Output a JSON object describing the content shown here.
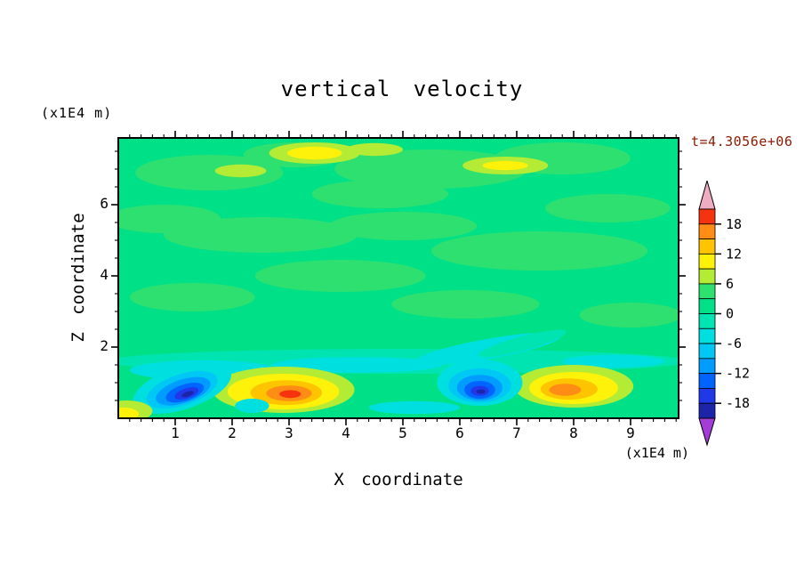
{
  "title": "vertical velocity",
  "time_label": "t=4.3056e+06",
  "colors": {
    "time_label": "#8b1a00",
    "frame": "#000000",
    "background": "#ffffff"
  },
  "axes": {
    "x": {
      "label": "X coordinate",
      "unit": "(x1E4 m)",
      "ticks": [
        "1",
        "2",
        "3",
        "4",
        "5",
        "6",
        "7",
        "8",
        "9"
      ],
      "min": 0,
      "max": 9.84
    },
    "y": {
      "label": "Z coordinate",
      "unit": "(x1E4 m)",
      "ticks": [
        "2",
        "4",
        "6"
      ],
      "min": 0,
      "max": 7.875
    }
  },
  "colorbar": {
    "tick_labels": [
      "18",
      "12",
      "6",
      "0",
      "-6",
      "-12",
      "-18"
    ],
    "segments": [
      "red",
      "orange",
      "amber",
      "yellow",
      "yellowgreen",
      "green",
      "springgreen",
      "aqua",
      "cyan",
      "lightblue",
      "dodger",
      "blue",
      "deepblue",
      "navy"
    ],
    "arrow_top": "pink",
    "arrow_bottom": "purple"
  },
  "chart_data": {
    "type": "heatmap",
    "title": "vertical velocity",
    "xlabel": "X coordinate (x1E4 m)",
    "ylabel": "Z coordinate (x1E4 m)",
    "time": "t=4.3056e+06",
    "xlim": [
      0,
      9.84
    ],
    "ylim": [
      0,
      7.875
    ],
    "x_ticks": [
      1,
      2,
      3,
      4,
      5,
      6,
      7,
      8,
      9
    ],
    "y_ticks": [
      2,
      4,
      6
    ],
    "contour_interval": 3,
    "levels": [
      -21,
      -18,
      -15,
      -12,
      -9,
      -6,
      -3,
      0,
      3,
      6,
      9,
      12,
      15,
      18,
      21
    ],
    "bands": {
      "navy": "#1c24aa",
      "deepblue": "#2038e8",
      "blue": "#0064ff",
      "dodger": "#009cff",
      "lightblue": "#00c8f5",
      "cyan": "#00dfe0",
      "aqua": "#00e4b2",
      "springgreen": "#00e187",
      "green": "#2ee070",
      "yellowgreen": "#b4eb34",
      "yellow": "#fff20a",
      "amber": "#ffc400",
      "orange": "#ff8c14",
      "red": "#f5330f",
      "pink": "#eeadc0",
      "purple": "#a43cd8"
    },
    "background_band": "springgreen",
    "features": [
      [
        1.6,
        6.9,
        1.3,
        0.5,
        "green"
      ],
      [
        3.1,
        7.4,
        0.9,
        0.35,
        "green"
      ],
      [
        5.5,
        7.0,
        1.7,
        0.55,
        "green"
      ],
      [
        7.8,
        7.3,
        1.2,
        0.45,
        "green"
      ],
      [
        0.8,
        5.6,
        1.0,
        0.4,
        "green"
      ],
      [
        2.5,
        5.15,
        1.7,
        0.5,
        "green"
      ],
      [
        5.0,
        5.4,
        1.3,
        0.4,
        "green"
      ],
      [
        7.4,
        4.7,
        1.9,
        0.55,
        "green"
      ],
      [
        3.9,
        4.0,
        1.5,
        0.45,
        "green"
      ],
      [
        1.3,
        3.4,
        1.1,
        0.4,
        "green"
      ],
      [
        6.1,
        3.2,
        1.3,
        0.4,
        "green"
      ],
      [
        9.0,
        2.9,
        0.9,
        0.35,
        "green"
      ],
      [
        4.6,
        6.3,
        1.2,
        0.4,
        "green"
      ],
      [
        8.6,
        5.9,
        1.1,
        0.4,
        "green"
      ],
      [
        3.45,
        7.45,
        0.8,
        0.3,
        "yellowgreen"
      ],
      [
        3.45,
        7.45,
        0.48,
        0.18,
        "yellow"
      ],
      [
        6.8,
        7.1,
        0.75,
        0.25,
        "yellowgreen"
      ],
      [
        6.8,
        7.1,
        0.4,
        0.13,
        "yellow"
      ],
      [
        2.15,
        6.95,
        0.45,
        0.18,
        "yellowgreen"
      ],
      [
        4.5,
        7.55,
        0.5,
        0.18,
        "yellowgreen"
      ],
      [
        4.9,
        1.6,
        5.1,
        0.35,
        "aqua"
      ],
      [
        1.5,
        1.35,
        1.3,
        0.28,
        "cyan"
      ],
      [
        4.2,
        1.5,
        1.5,
        0.22,
        "cyan"
      ],
      [
        6.5,
        1.95,
        1.3,
        0.28,
        "cyan",
        -10
      ],
      [
        8.7,
        1.6,
        0.9,
        0.18,
        "cyan"
      ],
      [
        7.1,
        2.1,
        0.8,
        0.2,
        "aqua",
        -15
      ],
      [
        2.9,
        0.8,
        1.25,
        0.65,
        "yellowgreen"
      ],
      [
        2.9,
        0.75,
        0.98,
        0.5,
        "yellow"
      ],
      [
        2.95,
        0.72,
        0.63,
        0.35,
        "amber"
      ],
      [
        3.0,
        0.7,
        0.4,
        0.22,
        "orange"
      ],
      [
        3.02,
        0.68,
        0.19,
        0.11,
        "red"
      ],
      [
        8.0,
        0.9,
        1.05,
        0.6,
        "yellowgreen"
      ],
      [
        8.0,
        0.85,
        0.78,
        0.45,
        "yellow"
      ],
      [
        7.92,
        0.82,
        0.5,
        0.3,
        "amber"
      ],
      [
        7.85,
        0.8,
        0.28,
        0.17,
        "orange"
      ],
      [
        1.12,
        0.85,
        0.9,
        0.6,
        "cyan",
        -18
      ],
      [
        1.12,
        0.8,
        0.65,
        0.44,
        "lightblue",
        -18
      ],
      [
        1.14,
        0.76,
        0.5,
        0.33,
        "dodger",
        -18
      ],
      [
        1.17,
        0.72,
        0.35,
        0.23,
        "blue",
        -18
      ],
      [
        1.2,
        0.7,
        0.22,
        0.14,
        "deepblue",
        -18
      ],
      [
        1.22,
        0.68,
        0.11,
        0.07,
        "navy",
        -18
      ],
      [
        6.35,
        1.0,
        0.75,
        0.65,
        "cyan"
      ],
      [
        6.35,
        0.92,
        0.55,
        0.48,
        "lightblue"
      ],
      [
        6.35,
        0.86,
        0.4,
        0.36,
        "dodger"
      ],
      [
        6.35,
        0.8,
        0.27,
        0.25,
        "blue"
      ],
      [
        6.35,
        0.77,
        0.16,
        0.14,
        "deepblue"
      ],
      [
        6.37,
        0.75,
        0.08,
        0.06,
        "navy"
      ],
      [
        2.35,
        0.35,
        0.3,
        0.2,
        "cyan"
      ],
      [
        5.2,
        0.3,
        0.8,
        0.18,
        "cyan"
      ],
      [
        0.15,
        0.2,
        0.45,
        0.3,
        "yellowgreen"
      ],
      [
        0.08,
        0.12,
        0.28,
        0.18,
        "yellow"
      ]
    ]
  }
}
